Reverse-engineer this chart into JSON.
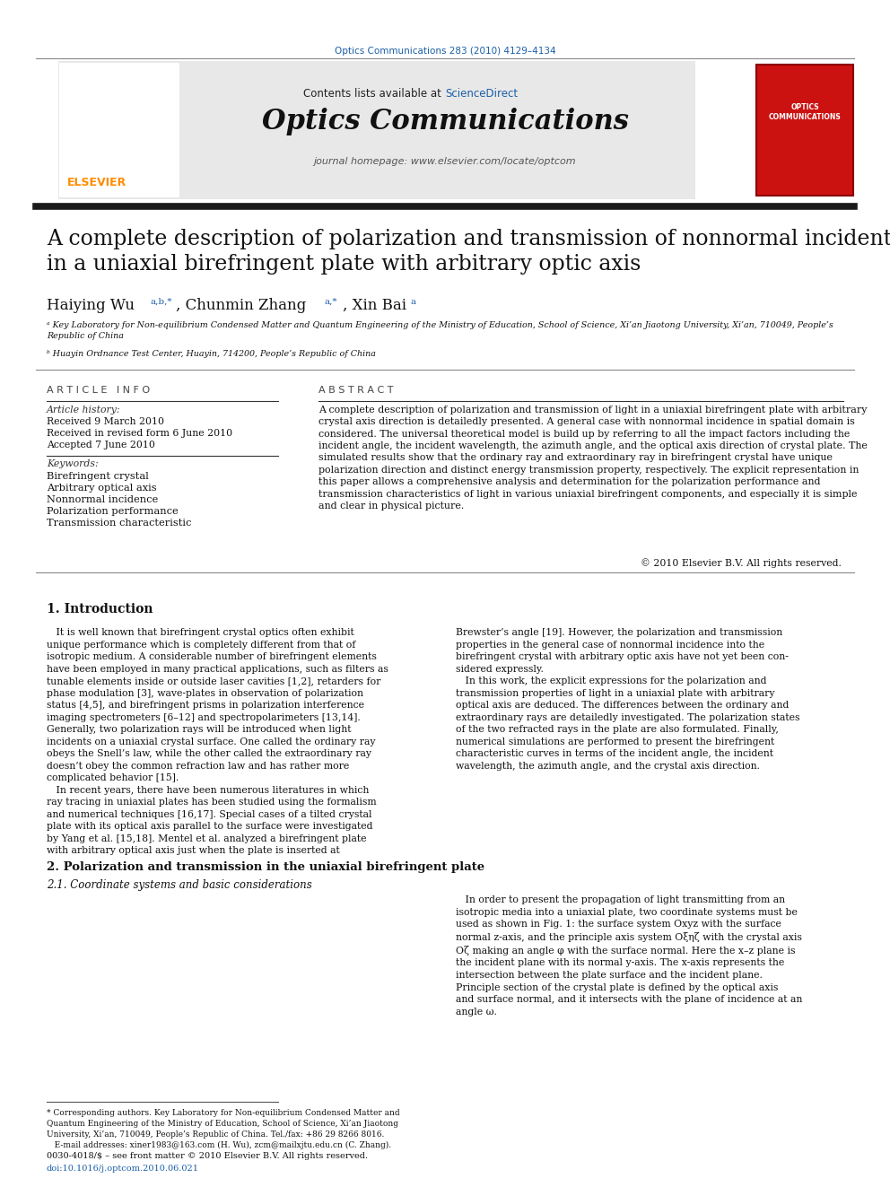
{
  "page_width": 9.92,
  "page_height": 13.23,
  "bg_color": "#ffffff",
  "journal_ref": "Optics Communications 283 (2010) 4129–4134",
  "journal_ref_color": "#1a5fa8",
  "header_bg": "#e8e8e8",
  "contents_text": "Contents lists available at ",
  "sciencedirect_text": "ScienceDirect",
  "sciencedirect_color": "#1a5fa8",
  "journal_name": "Optics Communications",
  "journal_homepage": "journal homepage: www.elsevier.com/locate/optcom",
  "thick_bar_color": "#1a1a1a",
  "title": "A complete description of polarization and transmission of nonnormal incident rays\nin a uniaxial birefringent plate with arbitrary optic axis",
  "affil_a": "ᵃ Key Laboratory for Non-equilibrium Condensed Matter and Quantum Engineering of the Ministry of Education, School of Science, Xi’an Jiaotong University, Xi’an, 710049, People’s\nRepublic of China",
  "affil_b": "ᵇ Huayin Ordnance Test Center, Huayin, 714200, People’s Republic of China",
  "article_info_title": "A R T I C L E   I N F O",
  "article_history_title": "Article history:",
  "received1": "Received 9 March 2010",
  "received2": "Received in revised form 6 June 2010",
  "accepted": "Accepted 7 June 2010",
  "keywords_title": "Keywords:",
  "keywords": [
    "Birefringent crystal",
    "Arbitrary optical axis",
    "Nonnormal incidence",
    "Polarization performance",
    "Transmission characteristic"
  ],
  "abstract_title": "A B S T R A C T",
  "abstract_text": "A complete description of polarization and transmission of light in a uniaxial birefringent plate with arbitrary\ncrystal axis direction is detailedly presented. A general case with nonnormal incidence in spatial domain is\nconsidered. The universal theoretical model is build up by referring to all the impact factors including the\nincident angle, the incident wavelength, the azimuth angle, and the optical axis direction of crystal plate. The\nsimulated results show that the ordinary ray and extraordinary ray in birefringent crystal have unique\npolarization direction and distinct energy transmission property, respectively. The explicit representation in\nthis paper allows a comprehensive analysis and determination for the polarization performance and\ntransmission characteristics of light in various uniaxial birefringent components, and especially it is simple\nand clear in physical picture.",
  "copyright": "© 2010 Elsevier B.V. All rights reserved.",
  "section1_title": "1. Introduction",
  "intro_col1": "   It is well known that birefringent crystal optics often exhibit\nunique performance which is completely different from that of\nisotropic medium. A considerable number of birefringent elements\nhave been employed in many practical applications, such as filters as\ntunable elements inside or outside laser cavities [1,2], retarders for\nphase modulation [3], wave-plates in observation of polarization\nstatus [4,5], and birefringent prisms in polarization interference\nimaging spectrometers [6–12] and spectropolarimeters [13,14].\nGenerally, two polarization rays will be introduced when light\nincidents on a uniaxial crystal surface. One called the ordinary ray\nobeys the Snell’s law, while the other called the extraordinary ray\ndoesn’t obey the common refraction law and has rather more\ncomplicated behavior [15].\n   In recent years, there have been numerous literatures in which\nray tracing in uniaxial plates has been studied using the formalism\nand numerical techniques [16,17]. Special cases of a tilted crystal\nplate with its optical axis parallel to the surface were investigated\nby Yang et al. [15,18]. Mentel et al. analyzed a birefringent plate\nwith arbitrary optical axis just when the plate is inserted at",
  "intro_col2": "Brewster’s angle [19]. However, the polarization and transmission\nproperties in the general case of nonnormal incidence into the\nbirefringent crystal with arbitrary optic axis have not yet been con-\nsidered expressly.\n   In this work, the explicit expressions for the polarization and\ntransmission properties of light in a uniaxial plate with arbitrary\noptical axis are deduced. The differences between the ordinary and\nextraordinary rays are detailedly investigated. The polarization states\nof the two refracted rays in the plate are also formulated. Finally,\nnumerical simulations are performed to present the birefringent\ncharacteristic curves in terms of the incident angle, the incident\nwavelength, the azimuth angle, and the crystal axis direction.",
  "section2_title": "2. Polarization and transmission in the uniaxial birefringent plate",
  "section21_title": "2.1. Coordinate systems and basic considerations",
  "section21_text": "   In order to present the propagation of light transmitting from an\nisotropic media into a uniaxial plate, two coordinate systems must be\nused as shown in Fig. 1: the surface system Oxyz with the surface\nnormal z-axis, and the principle axis system Oξηζ with the crystal axis\nOζ making an angle φ with the surface normal. Here the x–z plane is\nthe incident plane with its normal y-axis. The x-axis represents the\nintersection between the plate surface and the incident plane.\nPrinciple section of the crystal plate is defined by the optical axis\nand surface normal, and it intersects with the plane of incidence at an\nangle ω.",
  "footnote_star": "* Corresponding authors. Key Laboratory for Non-equilibrium Condensed Matter and\nQuantum Engineering of the Ministry of Education, School of Science, Xi’an Jiaotong\nUniversity, Xi’an, 710049, People’s Republic of China. Tel./fax: +86 29 8266 8016.\n   E-mail addresses: xiner1983@163.com (H. Wu), zcm@mailxjtu.edu.cn (C. Zhang).",
  "issn_line": "0030-4018/$ – see front matter © 2010 Elsevier B.V. All rights reserved.",
  "doi_line": "doi:10.1016/j.optcom.2010.06.021",
  "link_color": "#1a5fa8"
}
